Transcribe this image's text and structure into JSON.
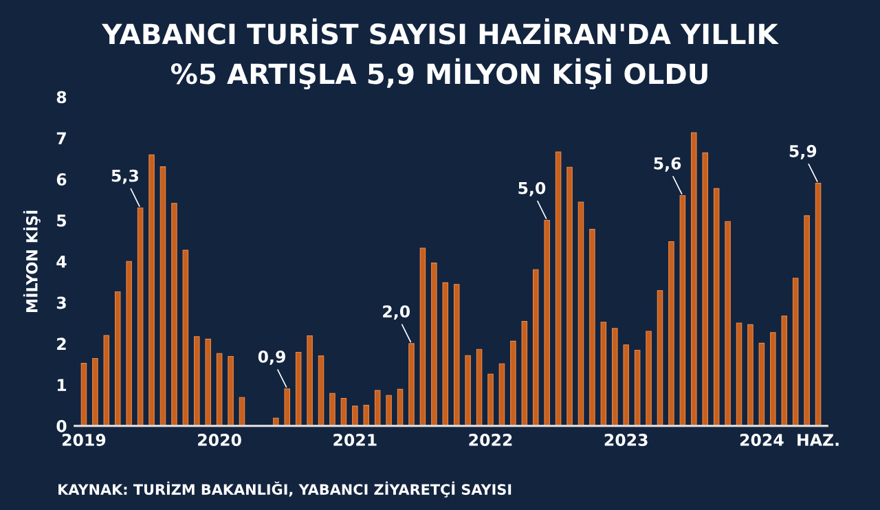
{
  "chart_data": {
    "type": "bar",
    "title": "YABANCI TURİST SAYISI HAZİRAN'DA YILLIK\n%5 ARTIŞLA 5,9 MİLYON KİŞİ OLDU",
    "ylabel": "MİLYON KİŞİ",
    "categories": [
      "2019",
      null,
      null,
      null,
      null,
      null,
      null,
      null,
      null,
      null,
      null,
      null,
      "2020",
      null,
      null,
      null,
      null,
      null,
      null,
      null,
      null,
      null,
      null,
      null,
      "2021",
      null,
      null,
      null,
      null,
      null,
      null,
      null,
      null,
      null,
      null,
      null,
      "2022",
      null,
      null,
      null,
      null,
      null,
      null,
      null,
      null,
      null,
      null,
      null,
      "2023",
      null,
      null,
      null,
      null,
      null,
      null,
      null,
      null,
      null,
      null,
      null,
      "2024",
      null,
      null,
      null,
      null,
      "HAZ."
    ],
    "values": [
      1.52,
      1.64,
      2.2,
      3.26,
      4.0,
      5.3,
      6.59,
      6.3,
      5.41,
      4.27,
      2.17,
      2.11,
      1.76,
      1.69,
      0.69,
      null,
      null,
      0.19,
      0.9,
      1.79,
      2.19,
      1.7,
      0.79,
      0.67,
      0.48,
      0.5,
      0.86,
      0.74,
      0.89,
      2.0,
      4.32,
      3.96,
      3.48,
      3.44,
      1.71,
      1.86,
      1.26,
      1.51,
      2.06,
      2.54,
      3.8,
      5.0,
      6.66,
      6.29,
      5.44,
      4.78,
      2.52,
      2.37,
      1.97,
      1.84,
      2.3,
      3.29,
      4.48,
      5.6,
      7.13,
      6.64,
      5.77,
      4.97,
      2.5,
      2.46,
      2.01,
      2.27,
      2.67,
      3.59,
      5.11,
      5.9
    ],
    "value_labels": [
      null,
      null,
      null,
      null,
      null,
      "5,3",
      null,
      null,
      null,
      null,
      null,
      null,
      null,
      null,
      null,
      null,
      null,
      null,
      "0,9",
      null,
      null,
      null,
      null,
      null,
      null,
      null,
      null,
      null,
      null,
      "2,0",
      null,
      null,
      null,
      null,
      null,
      null,
      null,
      null,
      null,
      null,
      null,
      "5,0",
      null,
      null,
      null,
      null,
      null,
      null,
      null,
      null,
      null,
      null,
      null,
      "5,6",
      null,
      null,
      null,
      null,
      null,
      null,
      null,
      null,
      null,
      null,
      null,
      "5,9"
    ],
    "color": "#c8601e",
    "ylim": [
      0,
      8
    ],
    "yticks": [
      0,
      1,
      2,
      3,
      4,
      5,
      6,
      7,
      8
    ],
    "grid": false,
    "legend": false,
    "annotations": [
      "KAYNAK: TURİZM BAKANLIĞI, YABANCI ZİYARETÇİ SAYISI"
    ]
  }
}
